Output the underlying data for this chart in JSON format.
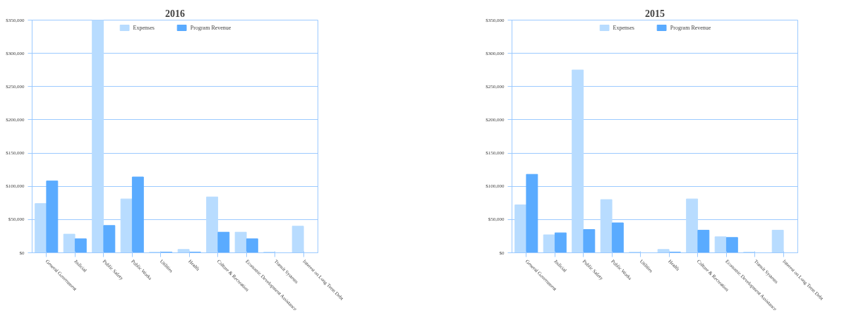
{
  "chart_data": [
    {
      "type": "bar",
      "title": "2016",
      "categories": [
        "General Government",
        "Judicial",
        "Public Safety",
        "Public Works",
        "Utilities",
        "Health",
        "Culture & Recreation",
        "Economic Development Assistance",
        "Transit Systems",
        "Interest on Long Term Debt"
      ],
      "series": [
        {
          "name": "Expenses",
          "color": "#b8dcff",
          "values": [
            74000,
            28000,
            350000,
            81000,
            1000,
            5000,
            84000,
            31000,
            1000,
            40000
          ]
        },
        {
          "name": "Program Revenue",
          "color": "#5aabff",
          "values": [
            108000,
            21000,
            41000,
            114000,
            1000,
            1000,
            31000,
            21000,
            0,
            0
          ]
        }
      ],
      "ylim": [
        0,
        350000
      ],
      "yticks": [
        {
          "value": 0,
          "label": "$0"
        },
        {
          "value": 50000,
          "label": "$50,000"
        },
        {
          "value": 100000,
          "label": "$100,000"
        },
        {
          "value": 150000,
          "label": "$150,000"
        },
        {
          "value": 200000,
          "label": "$200,000"
        },
        {
          "value": 250000,
          "label": "$250,000"
        },
        {
          "value": 300000,
          "label": "$300,000"
        },
        {
          "value": 350000,
          "label": "$350,000"
        }
      ],
      "grid": "y",
      "legend": "top"
    },
    {
      "type": "bar",
      "title": "2015",
      "categories": [
        "General Government",
        "Judicial",
        "Public Safety",
        "Public Works",
        "Utilities",
        "Health",
        "Culture & Recreation",
        "Economic Development Assistance",
        "Transit Systems",
        "Interest on Long Term Debt"
      ],
      "series": [
        {
          "name": "Expenses",
          "color": "#b8dcff",
          "values": [
            72000,
            27000,
            275000,
            80000,
            1000,
            5000,
            81000,
            24000,
            1000,
            34000
          ]
        },
        {
          "name": "Program Revenue",
          "color": "#5aabff",
          "values": [
            118000,
            30000,
            35000,
            45000,
            0,
            1000,
            34000,
            23000,
            0,
            0
          ]
        }
      ],
      "ylim": [
        0,
        350000
      ],
      "yticks": [
        {
          "value": 0,
          "label": "$0"
        },
        {
          "value": 50000,
          "label": "$50,000"
        },
        {
          "value": 100000,
          "label": "$100,000"
        },
        {
          "value": 150000,
          "label": "$150,000"
        },
        {
          "value": 200000,
          "label": "$200,000"
        },
        {
          "value": 250000,
          "label": "$250,000"
        },
        {
          "value": 300000,
          "label": "$300,000"
        },
        {
          "value": 350000,
          "label": "$350,000"
        }
      ],
      "grid": "y",
      "legend": "top"
    }
  ]
}
